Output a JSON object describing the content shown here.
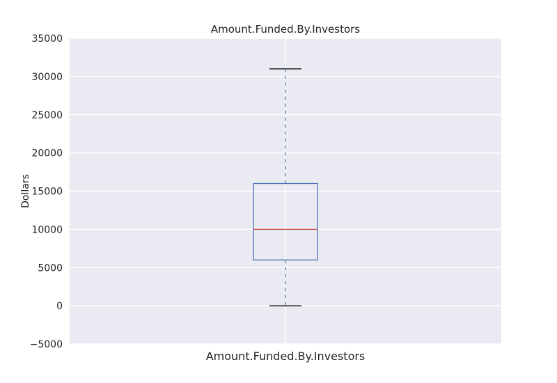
{
  "chart_data": {
    "type": "box",
    "title": "Amount.Funded.By.Investors",
    "xlabel": "",
    "ylabel": "Dollars",
    "categories": [
      "Amount.Funded.By.Investors"
    ],
    "ylim": [
      -5000,
      35000
    ],
    "yticks": [
      -5000,
      0,
      5000,
      10000,
      15000,
      20000,
      25000,
      30000,
      35000
    ],
    "ytick_labels": [
      "−5000",
      "0",
      "5000",
      "10000",
      "15000",
      "20000",
      "25000",
      "30000",
      "35000"
    ],
    "grid": true,
    "boxes": [
      {
        "name": "Amount.Funded.By.Investors",
        "whisker_low": 0,
        "q1": 6000,
        "median": 10000,
        "q3": 16000,
        "whisker_high": 31000
      }
    ],
    "colors": {
      "plot_background": "#eaeaf2",
      "grid": "#ffffff",
      "box": "#4c72b0",
      "median": "#c44e52",
      "whisker": "#4c72b0",
      "cap": "#000000"
    }
  }
}
